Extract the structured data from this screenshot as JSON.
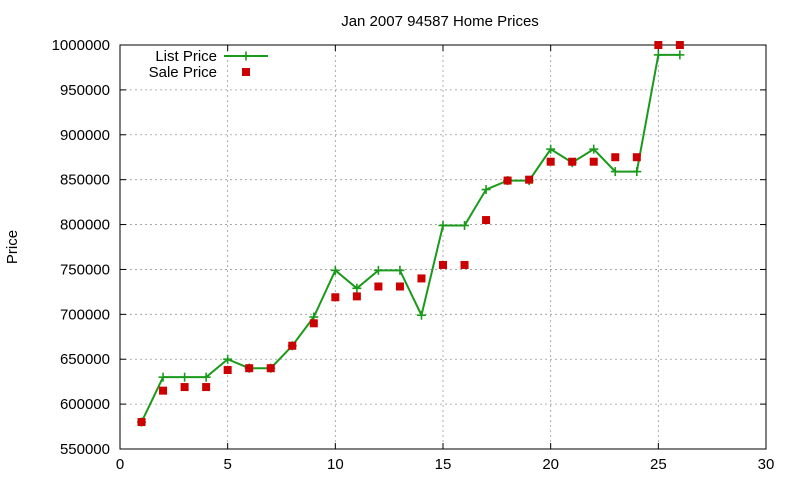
{
  "chart_data": {
    "type": "line",
    "title": "Jan 2007 94587 Home Prices",
    "xlabel": "",
    "ylabel": "Price",
    "xlim": [
      0,
      30
    ],
    "ylim": [
      550000,
      1000000
    ],
    "x_ticks": [
      0,
      5,
      10,
      15,
      20,
      25,
      30
    ],
    "y_ticks": [
      550000,
      600000,
      650000,
      700000,
      750000,
      800000,
      850000,
      900000,
      950000,
      1000000
    ],
    "grid": true,
    "legend_position": "top-left",
    "series": [
      {
        "name": "List Price",
        "style": "line-plus",
        "color": "#1a9a1a",
        "x": [
          1,
          2,
          3,
          4,
          5,
          6,
          7,
          8,
          9,
          10,
          11,
          12,
          13,
          14,
          15,
          16,
          17,
          18,
          19,
          20,
          21,
          22,
          23,
          24,
          25,
          26
        ],
        "values": [
          580000,
          630000,
          630000,
          630000,
          650000,
          640000,
          640000,
          665000,
          697000,
          749000,
          729000,
          749000,
          749000,
          699000,
          799000,
          799000,
          839000,
          849000,
          849000,
          884000,
          869000,
          884000,
          859000,
          859000,
          989000,
          989000
        ]
      },
      {
        "name": "Sale Price",
        "style": "square-points",
        "color": "#cc0000",
        "x": [
          1,
          2,
          3,
          4,
          5,
          6,
          7,
          8,
          9,
          10,
          11,
          12,
          13,
          14,
          15,
          16,
          17,
          18,
          19,
          20,
          21,
          22,
          23,
          24,
          25,
          26
        ],
        "values": [
          580000,
          615000,
          619000,
          619000,
          638000,
          640000,
          640000,
          665000,
          690000,
          719000,
          720000,
          731000,
          731000,
          740000,
          755000,
          755000,
          805000,
          849000,
          850000,
          870000,
          870000,
          870000,
          875000,
          875000,
          1000000,
          1000000
        ]
      }
    ]
  }
}
